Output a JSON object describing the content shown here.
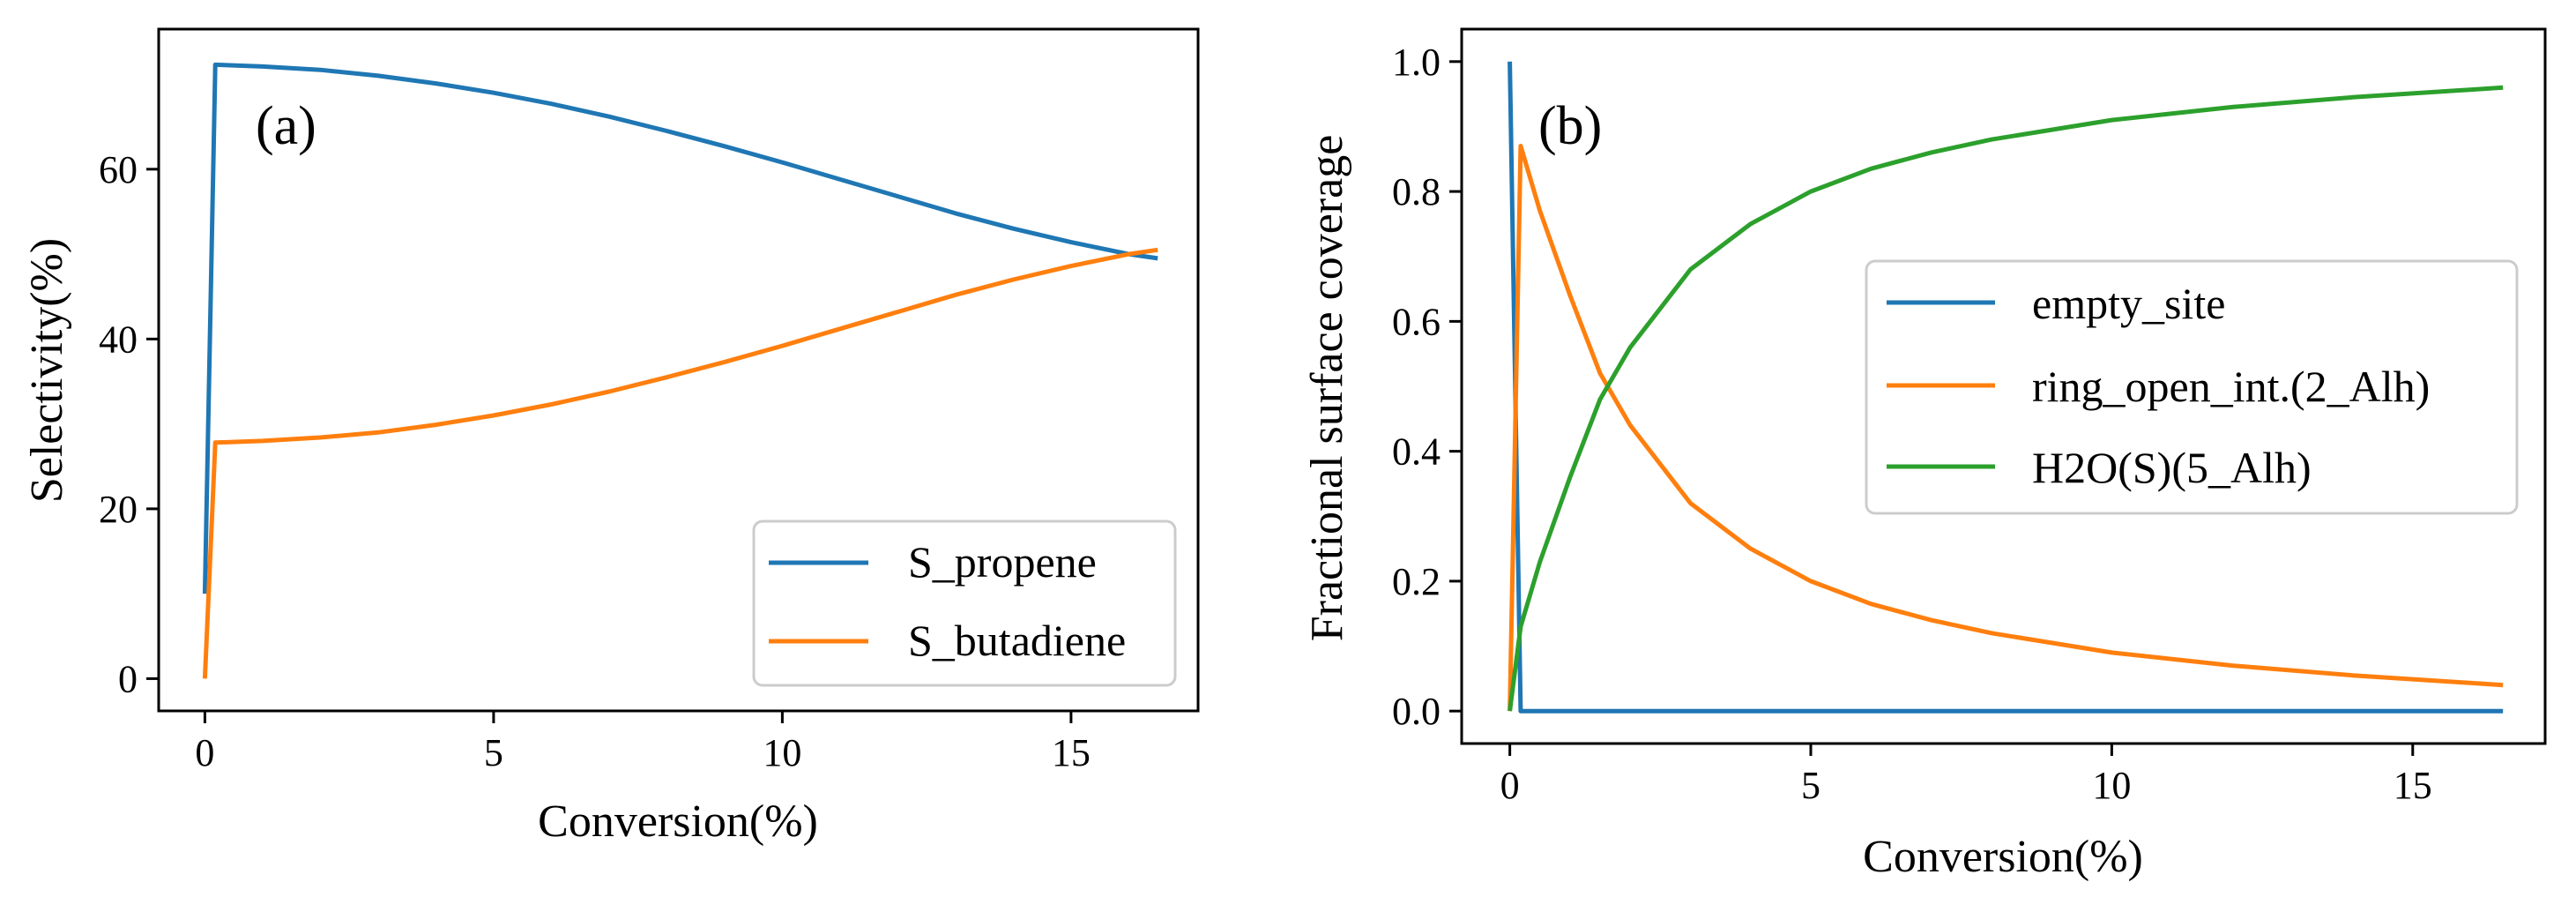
{
  "chart_data": [
    {
      "type": "line",
      "panel_label": "(a)",
      "title": "",
      "xlabel": "Conversion(%)",
      "ylabel": "Selectivity(%)",
      "xlim": [
        -0.8,
        17.2
      ],
      "ylim": [
        -3.8,
        76.5
      ],
      "xticks": [
        0,
        5,
        10,
        15
      ],
      "xtick_labels": [
        "0",
        "5",
        "10",
        "15"
      ],
      "yticks": [
        0,
        20,
        40,
        60
      ],
      "ytick_labels": [
        "0",
        "20",
        "40",
        "60"
      ],
      "grid": false,
      "legend_position": "lower-right",
      "series": [
        {
          "name": "S_propene",
          "color": "#1f77b4",
          "x": [
            0,
            0.18,
            1,
            2,
            3,
            4,
            5,
            6,
            7,
            8,
            9,
            10,
            11,
            12,
            13,
            14,
            15,
            16,
            16.5
          ],
          "y": [
            10,
            72.3,
            72.1,
            71.7,
            71.0,
            70.1,
            69.0,
            67.7,
            66.2,
            64.5,
            62.7,
            60.8,
            58.8,
            56.8,
            54.8,
            53.0,
            51.4,
            50.0,
            49.5
          ]
        },
        {
          "name": "S_butadiene",
          "color": "#ff7f0e",
          "x": [
            0,
            0.18,
            1,
            2,
            3,
            4,
            5,
            6,
            7,
            8,
            9,
            10,
            11,
            12,
            13,
            14,
            15,
            16,
            16.5
          ],
          "y": [
            0,
            27.8,
            28.0,
            28.4,
            29.0,
            29.9,
            31.0,
            32.3,
            33.8,
            35.5,
            37.3,
            39.2,
            41.2,
            43.2,
            45.2,
            47.0,
            48.6,
            50.0,
            50.5
          ]
        }
      ]
    },
    {
      "type": "line",
      "panel_label": "(b)",
      "title": "",
      "xlabel": "Conversion(%)",
      "ylabel": "Fractional surface coverage",
      "xlim": [
        -0.8,
        17.2
      ],
      "ylim": [
        -0.05,
        1.05
      ],
      "xticks": [
        0,
        5,
        10,
        15
      ],
      "xtick_labels": [
        "0",
        "5",
        "10",
        "15"
      ],
      "yticks": [
        0.0,
        0.2,
        0.4,
        0.6,
        0.8,
        1.0
      ],
      "ytick_labels": [
        "0.0",
        "0.2",
        "0.4",
        "0.6",
        "0.8",
        "1.0"
      ],
      "grid": false,
      "legend_position": "center-right",
      "series": [
        {
          "name": "empty_site",
          "color": "#1f77b4",
          "x": [
            0,
            0.18,
            1,
            5,
            10,
            16.5
          ],
          "y": [
            1.0,
            0.0,
            0.0,
            0.0,
            0.0,
            0.0
          ]
        },
        {
          "name": "ring_open_int.(2_Alh)",
          "color": "#ff7f0e",
          "x": [
            0,
            0.18,
            0.5,
            1,
            1.5,
            2,
            3,
            4,
            5,
            6,
            7,
            8,
            10,
            12,
            14,
            16.5
          ],
          "y": [
            0.0,
            0.87,
            0.77,
            0.64,
            0.52,
            0.44,
            0.32,
            0.25,
            0.2,
            0.165,
            0.14,
            0.12,
            0.09,
            0.07,
            0.055,
            0.04
          ]
        },
        {
          "name": "H2O(S)(5_Alh)",
          "color": "#2ca02c",
          "x": [
            0,
            0.18,
            0.5,
            1,
            1.5,
            2,
            3,
            4,
            5,
            6,
            7,
            8,
            10,
            12,
            14,
            16.5
          ],
          "y": [
            0.0,
            0.13,
            0.23,
            0.36,
            0.48,
            0.56,
            0.68,
            0.75,
            0.8,
            0.835,
            0.86,
            0.88,
            0.91,
            0.93,
            0.945,
            0.96
          ]
        }
      ]
    }
  ]
}
